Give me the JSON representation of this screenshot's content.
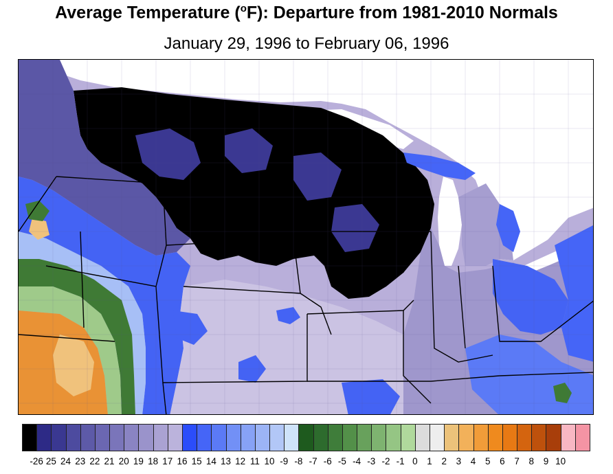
{
  "title_prefix": "Average Temperature (",
  "title_degree": "o",
  "title_suffix": "F): Departure from 1981-2010 Normals",
  "subtitle": "January 29, 1996 to February 06, 1996",
  "legend": {
    "labels": [
      "-26",
      "25",
      "24",
      "23",
      "22",
      "21",
      "20",
      "19",
      "18",
      "17",
      "16",
      "15",
      "14",
      "13",
      "12",
      "11",
      "10",
      "-9",
      "-8",
      "-7",
      "-6",
      "-5",
      "-4",
      "-3",
      "-2",
      "-1",
      "0",
      "1",
      "2",
      "3",
      "4",
      "5",
      "6",
      "7",
      "8",
      "9",
      "10"
    ],
    "colors": [
      "#000000",
      "#2d2a86",
      "#3a3891",
      "#4d4b9f",
      "#5d5aa8",
      "#6b67b2",
      "#7a75ba",
      "#8a84c3",
      "#9a93cb",
      "#aaa2d3",
      "#bbb3dc",
      "#2b4dfa",
      "#4565f7",
      "#5b7af6",
      "#7290f6",
      "#87a2f6",
      "#9cb4f6",
      "#b2c7f7",
      "#cfe3fa",
      "#1e5a1e",
      "#2d6b2d",
      "#3f7d3a",
      "#539049",
      "#68a15c",
      "#7eb370",
      "#95c584",
      "#b0d99c",
      "#dcdcdc",
      "#eeeeee",
      "#ecc27a",
      "#f2b15a",
      "#f19c39",
      "#ef8a1e",
      "#e77914",
      "#d4640f",
      "#be510c",
      "#a83e0a",
      "#f8b7c3",
      "#f494a4"
    ]
  },
  "map_colors": {
    "black": "#000000",
    "deep_purple": "#3b3892",
    "purple": "#6d68b4",
    "light_purple": "#b3a9d8",
    "pale_purple": "#cbc3e3",
    "blue": "#4463f4",
    "light_blue": "#a7bff6",
    "green_dark": "#3f7a35",
    "green_light": "#9fca8a",
    "orange": "#e99235",
    "orange_light": "#f0c27c",
    "outside": "#ffffff"
  }
}
